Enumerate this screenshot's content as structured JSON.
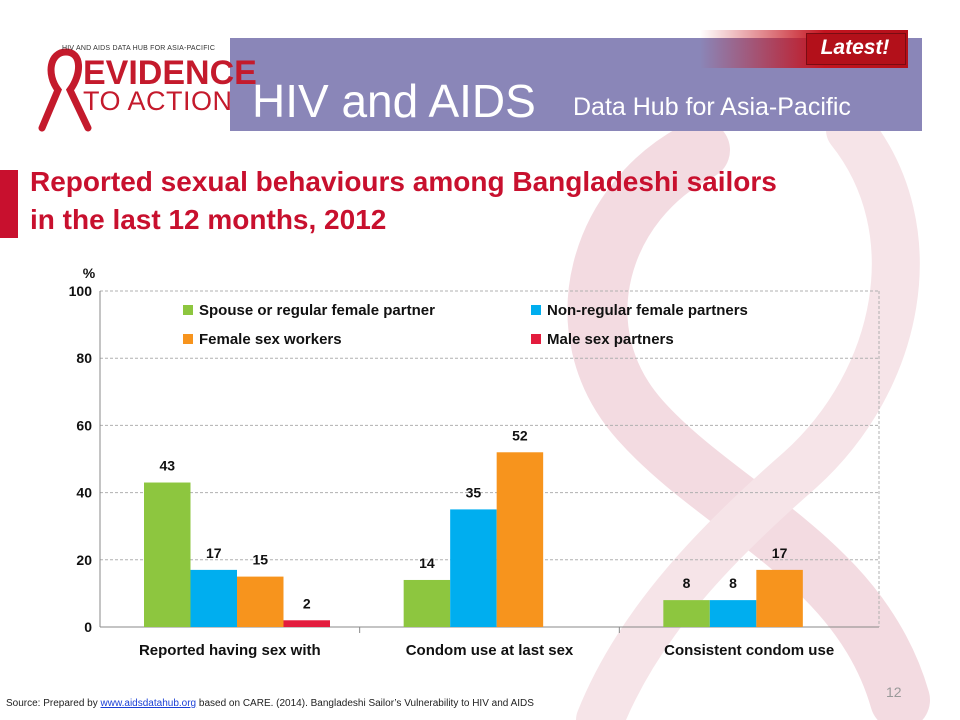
{
  "header": {
    "logo_small": "HIV AND AIDS DATA HUB FOR ASIA-PACIFIC",
    "logo_line1": "EVIDENCE",
    "logo_line2": "TO ACTION",
    "main_title": "HIV and AIDS",
    "sub_title": "Data Hub for Asia-Pacific",
    "badge": "Latest!"
  },
  "slide": {
    "title_line1": "Reported sexual behaviours among Bangladeshi sailors",
    "title_line2": "in the last 12 months, 2012",
    "page_number": "12"
  },
  "source": {
    "prefix": "Source: Prepared by ",
    "link": "www.aidsdatahub.org",
    "suffix": " based on CARE. (2014). Bangladeshi Sailor’s Vulnerability to HIV and AIDS"
  },
  "colors": {
    "accent": "#c8102e",
    "header_band": "#8a86b8",
    "series": [
      "#8dc63f",
      "#00aeef",
      "#f7941d",
      "#e31c3d"
    ]
  },
  "chart_data": {
    "type": "bar",
    "ylabel": "%",
    "ylim": [
      0,
      100
    ],
    "yticks": [
      0,
      20,
      40,
      60,
      80,
      100
    ],
    "grid": true,
    "legend_position": "top",
    "categories": [
      "Reported having sex with",
      "Condom use at last sex",
      "Consistent condom use"
    ],
    "series": [
      {
        "name": "Spouse or regular female partner",
        "values": [
          43,
          14,
          8
        ]
      },
      {
        "name": "Non-regular female partners",
        "values": [
          17,
          35,
          8
        ]
      },
      {
        "name": "Female sex workers",
        "values": [
          15,
          52,
          17
        ]
      },
      {
        "name": "Male sex partners",
        "values": [
          2,
          null,
          null
        ]
      }
    ]
  }
}
